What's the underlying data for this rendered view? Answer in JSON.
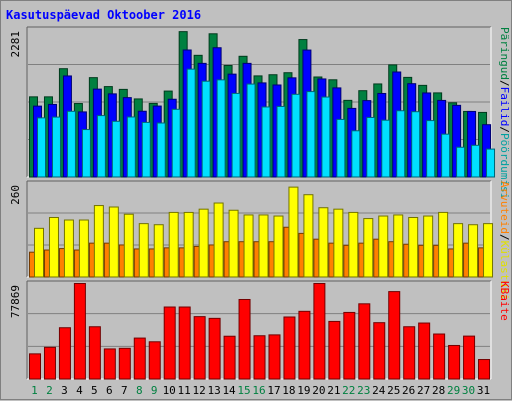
{
  "page": {
    "title": "Kasutuspäevad Oktoober 2016"
  },
  "chart_data": [
    {
      "type": "bar",
      "panel": "top",
      "y_max_label": "2281",
      "ylim": [
        0,
        2281
      ],
      "right_label": [
        "Päringud",
        "/",
        "Failid",
        "/",
        "Pöördumisi"
      ],
      "right_label_colors": [
        "#008040",
        "#000000",
        "#0000ff",
        "#000000",
        "#00a0a0"
      ],
      "x": [
        1,
        2,
        3,
        4,
        5,
        6,
        7,
        8,
        9,
        10,
        11,
        12,
        13,
        14,
        15,
        16,
        17,
        18,
        19,
        20,
        21,
        22,
        23,
        24,
        25,
        26,
        27,
        28,
        29,
        30,
        31
      ],
      "series": [
        {
          "name": "Päringud",
          "color": "#008040",
          "values": [
            1243,
            1243,
            1677,
            1140,
            1539,
            1401,
            1358,
            1211,
            1142,
            1332,
            2248,
            1883,
            2215,
            1726,
            1868,
            1566,
            1584,
            1615,
            2126,
            1549,
            1506,
            1189,
            1338,
            1442,
            1735,
            1543,
            1420,
            1304,
            1151,
            1018,
            1003
          ]
        },
        {
          "name": "Failid",
          "color": "#0000ff",
          "values": [
            1100,
            1126,
            1565,
            1011,
            1362,
            1289,
            1231,
            1021,
            1101,
            1206,
            1965,
            1759,
            2000,
            1593,
            1759,
            1458,
            1426,
            1536,
            1964,
            1519,
            1381,
            1065,
            1185,
            1295,
            1626,
            1446,
            1303,
            1188,
            1112,
            1018,
            814
          ]
        },
        {
          "name": "Pöördumisi",
          "color": "#00e0ff",
          "values": [
            919,
            931,
            1020,
            739,
            954,
            866,
            933,
            849,
            840,
            1051,
            1670,
            1484,
            1505,
            1296,
            1440,
            1087,
            1095,
            1282,
            1324,
            1240,
            895,
            720,
            925,
            883,
            1029,
            1014,
            877,
            668,
            466,
            496,
            438
          ]
        }
      ]
    },
    {
      "type": "bar",
      "panel": "middle",
      "y_max_label": "260",
      "ylim": [
        0,
        260
      ],
      "right_label": [
        "Arvuteid",
        "/",
        "Külastusi"
      ],
      "right_label_colors": [
        "#ff8000",
        "#000000",
        "#e0e000"
      ],
      "x": [
        1,
        2,
        3,
        4,
        5,
        6,
        7,
        8,
        9,
        10,
        11,
        12,
        13,
        14,
        15,
        16,
        17,
        18,
        19,
        20,
        21,
        22,
        23,
        24,
        25,
        26,
        27,
        28,
        29,
        30,
        31
      ],
      "series": [
        {
          "name": "Arvuteid",
          "color": "#ff8000",
          "values": [
            70,
            76,
            80,
            76,
            95,
            95,
            90,
            79,
            79,
            82,
            82,
            86,
            90,
            99,
            99,
            99,
            99,
            139,
            122,
            106,
            95,
            89,
            95,
            106,
            99,
            92,
            89,
            89,
            79,
            95,
            82
          ]
        },
        {
          "name": "Külastusi",
          "color": "#ffff00",
          "values": [
            136,
            166,
            159,
            159,
            199,
            195,
            175,
            149,
            146,
            180,
            180,
            189,
            206,
            186,
            173,
            173,
            170,
            250,
            229,
            193,
            189,
            180,
            163,
            170,
            173,
            166,
            170,
            180,
            149,
            146,
            149
          ]
        }
      ]
    },
    {
      "type": "bar",
      "panel": "bottom",
      "y_max_label": "77869",
      "ylim": [
        0,
        77869
      ],
      "right_label": [
        "KBaite"
      ],
      "right_label_colors": [
        "#ff0000"
      ],
      "x": [
        1,
        2,
        3,
        4,
        5,
        6,
        7,
        8,
        9,
        10,
        11,
        12,
        13,
        14,
        15,
        16,
        17,
        18,
        19,
        20,
        21,
        22,
        23,
        24,
        25,
        26,
        27,
        28,
        29,
        30,
        31
      ],
      "series": [
        {
          "name": "KBaite",
          "color": "#ff0000",
          "values": [
            20800,
            26100,
            42000,
            78000,
            42800,
            24800,
            25300,
            33600,
            30600,
            58800,
            58800,
            51000,
            49600,
            35100,
            64900,
            35500,
            36200,
            50700,
            55300,
            79600,
            47100,
            54400,
            61400,
            46100,
            71300,
            42800,
            45800,
            36900,
            27600,
            35200,
            16200
          ]
        }
      ]
    }
  ],
  "x_axis": {
    "labels": [
      "1",
      "2",
      "3",
      "4",
      "5",
      "6",
      "7",
      "8",
      "9",
      "10",
      "11",
      "12",
      "13",
      "14",
      "15",
      "16",
      "17",
      "18",
      "19",
      "20",
      "21",
      "22",
      "23",
      "24",
      "25",
      "26",
      "27",
      "28",
      "29",
      "30",
      "31"
    ],
    "weekend_days": [
      1,
      2,
      8,
      9,
      15,
      16,
      22,
      23,
      29,
      30
    ],
    "weekend_color": "#008040",
    "weekday_color": "#000000"
  },
  "colors": {
    "background": "#c0c0c0",
    "grid": "#808080",
    "title": "#0000ff"
  }
}
